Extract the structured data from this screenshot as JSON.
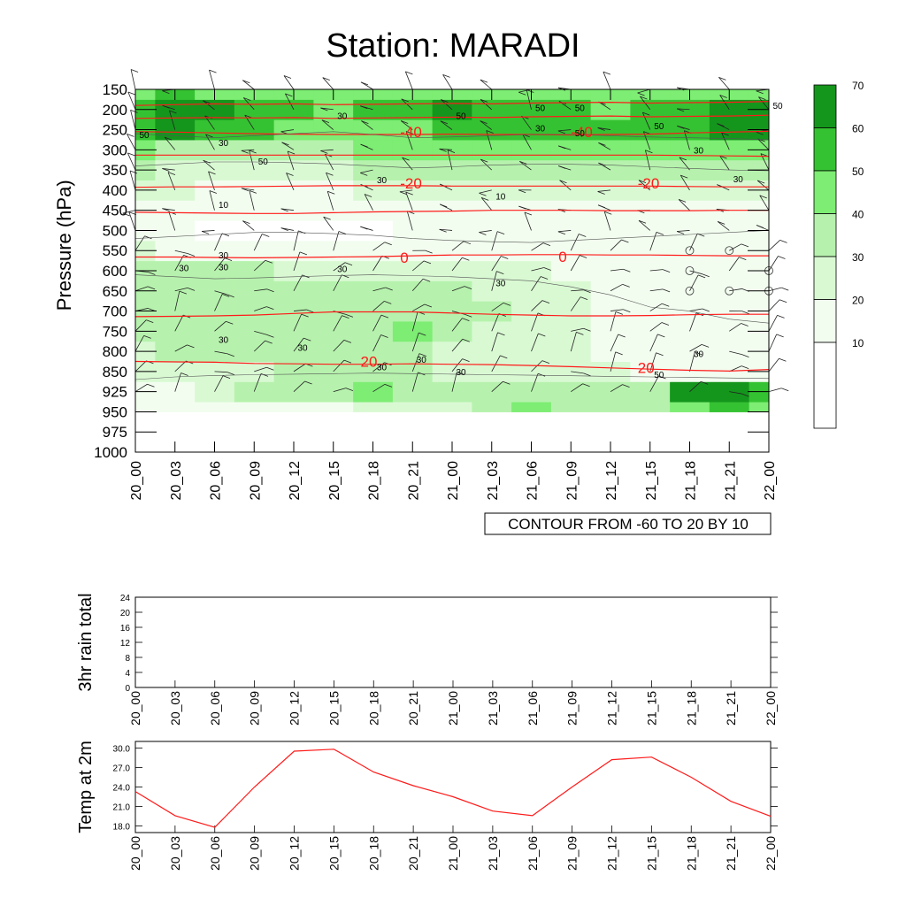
{
  "title": "Station: MARADI",
  "colors": {
    "fill_levels": [
      "#ffffff",
      "#f2fdef",
      "#d9f9d3",
      "#b6f2ad",
      "#7ded73",
      "#35c232",
      "#14961c"
    ],
    "temp_contour": "#ff1a1a",
    "speed_contour": "#555555"
  },
  "chart_data": [
    {
      "id": "cross_section",
      "type": "heatmap",
      "title": "Station: MARADI",
      "ylabel": "Pressure (hPa)",
      "xlabel": "",
      "x_ticks": [
        "20_00",
        "20_03",
        "20_06",
        "20_09",
        "20_12",
        "20_15",
        "20_18",
        "20_21",
        "21_00",
        "21_03",
        "21_06",
        "21_09",
        "21_12",
        "21_15",
        "21_18",
        "21_21",
        "22_00"
      ],
      "y_levels": [
        150,
        200,
        250,
        300,
        350,
        400,
        450,
        500,
        550,
        600,
        650,
        700,
        750,
        800,
        850,
        925,
        950,
        975,
        1000
      ],
      "y_tick_labels": [
        "150",
        "200",
        "250",
        "300",
        "350",
        "400",
        "450",
        "500",
        "550",
        "600",
        "650",
        "700",
        "750",
        "800",
        "850",
        "925",
        "950",
        "975",
        "1000"
      ],
      "contour_info": "CONTOUR FROM -60 TO 20 BY 10",
      "colorbar": {
        "levels": [
          10,
          20,
          30,
          40,
          50,
          60,
          70
        ],
        "labels": [
          "10",
          "20",
          "30",
          "40",
          "50",
          "60",
          "70"
        ]
      },
      "shading_levels": [
        {
          "level": "950",
          "values": [
            10,
            10,
            15,
            15,
            15,
            18,
            20,
            25,
            20,
            35,
            40,
            35,
            30,
            30,
            45,
            50,
            40
          ]
        },
        {
          "level": "925",
          "values": [
            15,
            18,
            25,
            30,
            30,
            35,
            40,
            35,
            30,
            35,
            35,
            30,
            30,
            35,
            60,
            65,
            50
          ]
        },
        {
          "level": "850",
          "values": [
            20,
            22,
            25,
            28,
            30,
            32,
            34,
            30,
            28,
            26,
            24,
            22,
            20,
            15,
            12,
            12,
            15
          ]
        },
        {
          "level": "800",
          "values": [
            25,
            30,
            32,
            34,
            34,
            33,
            32,
            30,
            28,
            26,
            24,
            20,
            16,
            12,
            10,
            10,
            12
          ]
        },
        {
          "level": "750",
          "values": [
            30,
            35,
            36,
            36,
            35,
            34,
            33,
            45,
            32,
            28,
            25,
            20,
            15,
            12,
            10,
            10,
            10
          ]
        },
        {
          "level": "700",
          "values": [
            32,
            38,
            38,
            37,
            36,
            35,
            35,
            36,
            33,
            30,
            27,
            22,
            16,
            12,
            10,
            10,
            10
          ]
        },
        {
          "level": "650",
          "values": [
            33,
            38,
            38,
            36,
            34,
            33,
            32,
            32,
            30,
            28,
            25,
            20,
            16,
            12,
            10,
            10,
            10
          ]
        },
        {
          "level": "600",
          "values": [
            30,
            32,
            32,
            30,
            28,
            27,
            26,
            26,
            25,
            24,
            22,
            18,
            14,
            10,
            10,
            10,
            10
          ]
        },
        {
          "level": "550",
          "values": [
            20,
            18,
            15,
            12,
            12,
            12,
            12,
            14,
            16,
            18,
            16,
            14,
            12,
            10,
            10,
            10,
            10
          ]
        },
        {
          "level": "500",
          "values": [
            10,
            10,
            8,
            8,
            8,
            8,
            8,
            10,
            12,
            14,
            14,
            12,
            10,
            10,
            10,
            10,
            10
          ]
        },
        {
          "level": "450",
          "values": [
            10,
            10,
            10,
            10,
            10,
            10,
            10,
            12,
            14,
            14,
            14,
            12,
            12,
            12,
            12,
            12,
            14
          ]
        },
        {
          "level": "400",
          "values": [
            20,
            20,
            18,
            16,
            16,
            18,
            20,
            24,
            24,
            22,
            22,
            22,
            22,
            24,
            26,
            26,
            28
          ]
        },
        {
          "level": "350",
          "values": [
            30,
            28,
            26,
            26,
            26,
            28,
            30,
            32,
            32,
            30,
            30,
            30,
            30,
            32,
            34,
            36,
            38
          ]
        },
        {
          "level": "300",
          "values": [
            40,
            38,
            36,
            34,
            34,
            36,
            40,
            42,
            42,
            40,
            40,
            40,
            40,
            42,
            44,
            46,
            48
          ]
        },
        {
          "level": "250",
          "values": [
            58,
            60,
            55,
            50,
            48,
            46,
            45,
            48,
            50,
            52,
            50,
            50,
            52,
            54,
            56,
            60,
            62
          ]
        },
        {
          "level": "200",
          "values": [
            55,
            62,
            60,
            52,
            50,
            48,
            50,
            58,
            62,
            58,
            55,
            50,
            48,
            52,
            56,
            60,
            64
          ]
        },
        {
          "level": "150",
          "values": [
            45,
            50,
            48,
            44,
            42,
            40,
            42,
            45,
            48,
            46,
            44,
            42,
            40,
            42,
            44,
            46,
            48
          ]
        }
      ],
      "temperature_contour_labels": [
        "-40",
        "-40",
        "-20",
        "-20",
        "0",
        "0",
        "20",
        "20"
      ],
      "speed_contour_labels": [
        "50",
        "30",
        "50",
        "50",
        "30",
        "50",
        "50",
        "30",
        "50",
        "50",
        "30",
        "50",
        "30",
        "30",
        "10",
        "10",
        "30",
        "30",
        "30",
        "30",
        "30",
        "30",
        "30",
        "30",
        "30",
        "30",
        "50",
        "30"
      ]
    },
    {
      "id": "rain",
      "type": "line",
      "ylabel": "3hr rain total",
      "ylim": [
        0,
        24
      ],
      "y_ticks": [
        "0",
        "4",
        "8",
        "12",
        "16",
        "20",
        "24"
      ],
      "x_ticks": [
        "20_00",
        "20_03",
        "20_06",
        "20_09",
        "20_12",
        "20_15",
        "20_18",
        "20_21",
        "21_00",
        "21_03",
        "21_06",
        "21_09",
        "21_12",
        "21_15",
        "21_18",
        "21_21",
        "22_00"
      ],
      "values": [
        0,
        0,
        0,
        0,
        0,
        0,
        0,
        0,
        0,
        0,
        0,
        0,
        0,
        0,
        0,
        0,
        0
      ]
    },
    {
      "id": "temp2m",
      "type": "line",
      "ylabel": "Temp at 2m",
      "ylim": [
        17,
        31
      ],
      "y_ticks": [
        "18.0",
        "21.0",
        "24.0",
        "27.0",
        "30.0"
      ],
      "x_ticks": [
        "20_00",
        "20_03",
        "20_06",
        "20_09",
        "20_12",
        "20_15",
        "20_18",
        "20_21",
        "21_00",
        "21_03",
        "21_06",
        "21_09",
        "21_12",
        "21_15",
        "21_18",
        "21_21",
        "22_00"
      ],
      "values": [
        23.3,
        19.6,
        17.8,
        24.0,
        29.5,
        29.8,
        26.3,
        24.2,
        22.5,
        20.3,
        19.6,
        24.0,
        28.2,
        28.6,
        25.5,
        21.8,
        19.5
      ]
    }
  ]
}
